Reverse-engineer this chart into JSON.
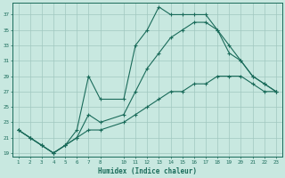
{
  "xlabel": "Humidex (Indice chaleur)",
  "bg_color": "#c8e8e0",
  "line_color": "#1a6b5a",
  "grid_color": "#a0c8c0",
  "xlim": [
    0.5,
    23.5
  ],
  "ylim": [
    18.5,
    38.5
  ],
  "xticks": [
    1,
    2,
    3,
    4,
    5,
    6,
    7,
    8,
    10,
    11,
    12,
    13,
    14,
    15,
    16,
    17,
    18,
    19,
    20,
    21,
    22,
    23
  ],
  "yticks": [
    19,
    21,
    23,
    25,
    27,
    29,
    31,
    33,
    35,
    37
  ],
  "line1_x": [
    1,
    2,
    3,
    4,
    5,
    6,
    7,
    8,
    10,
    11,
    12,
    13,
    14,
    15,
    16,
    17,
    18,
    19,
    20,
    21,
    22,
    23
  ],
  "line1_y": [
    22,
    21,
    20,
    19,
    20,
    22,
    29,
    26,
    26,
    33,
    35,
    38,
    37,
    37,
    37,
    37,
    35,
    32,
    31,
    29,
    28,
    27
  ],
  "line2_x": [
    1,
    2,
    3,
    4,
    5,
    6,
    7,
    8,
    10,
    11,
    12,
    13,
    14,
    15,
    16,
    17,
    18,
    19,
    20,
    21,
    22,
    23
  ],
  "line2_y": [
    22,
    21,
    20,
    19,
    20,
    21,
    24,
    23,
    24,
    27,
    30,
    32,
    34,
    35,
    36,
    36,
    35,
    33,
    31,
    29,
    28,
    27
  ],
  "line3_x": [
    1,
    2,
    3,
    4,
    5,
    6,
    7,
    8,
    10,
    11,
    12,
    13,
    14,
    15,
    16,
    17,
    18,
    19,
    20,
    21,
    22,
    23
  ],
  "line3_y": [
    22,
    21,
    20,
    19,
    20,
    21,
    22,
    22,
    23,
    24,
    25,
    26,
    27,
    27,
    28,
    28,
    29,
    29,
    29,
    28,
    27,
    27
  ]
}
